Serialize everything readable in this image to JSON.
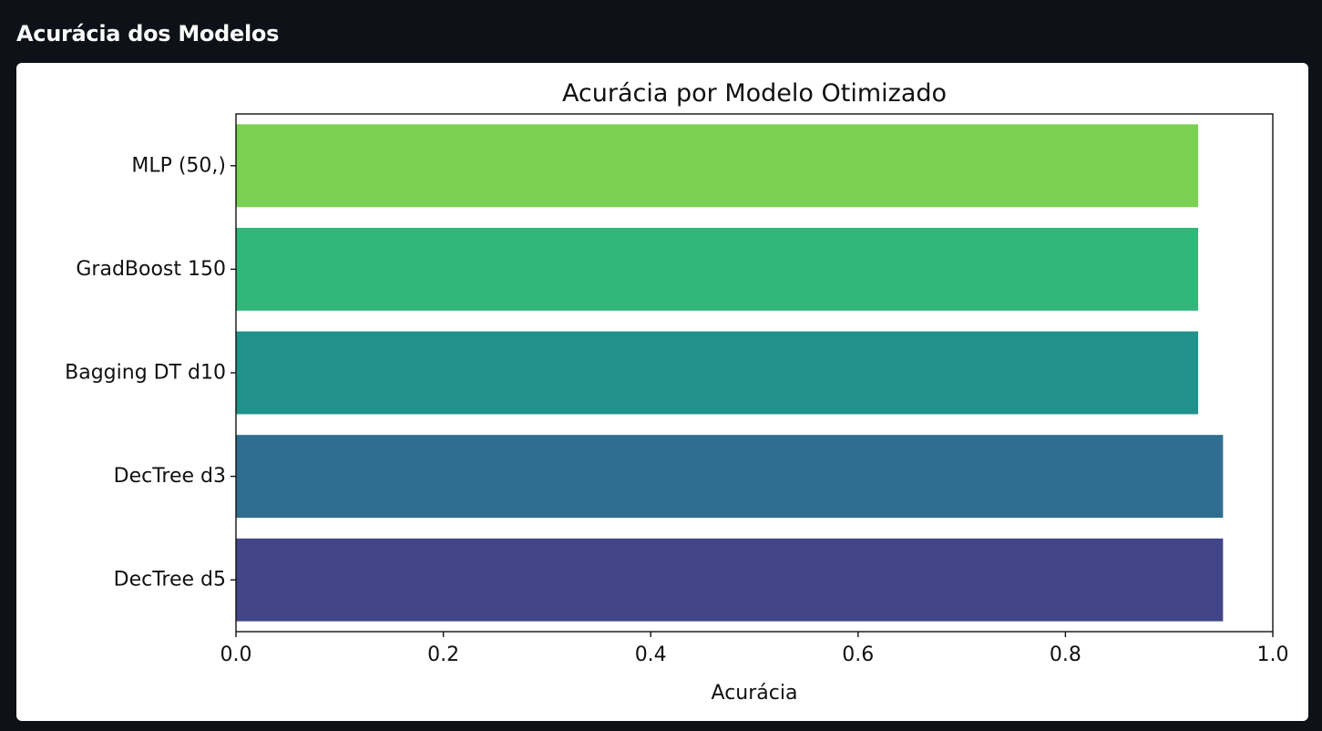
{
  "page": {
    "title": "Acurácia dos Modelos"
  },
  "chart_data": {
    "type": "bar",
    "orientation": "horizontal",
    "title": "Acurácia por Modelo Otimizado",
    "xlabel": "Acurácia",
    "ylabel": "",
    "xlim": [
      0.0,
      1.0
    ],
    "xticks": [
      "0.0",
      "0.2",
      "0.4",
      "0.6",
      "0.8",
      "1.0"
    ],
    "grid": false,
    "categories": [
      "MLP (50,)",
      "GradBoost 150",
      "Bagging DT d10",
      "DecTree d3",
      "DecTree d5"
    ],
    "values": [
      0.928,
      0.928,
      0.928,
      0.952,
      0.952
    ],
    "colors": [
      "#7ad151",
      "#32b67a",
      "#21918c",
      "#306e8f",
      "#424688"
    ]
  }
}
